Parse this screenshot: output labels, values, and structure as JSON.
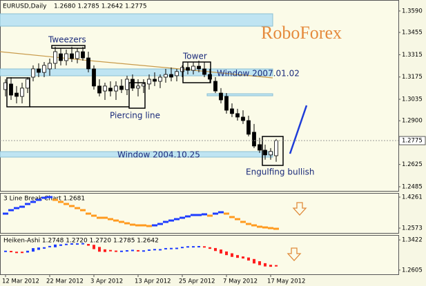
{
  "header": {
    "symbol": "EURUSD,Daily",
    "ohlc": "1.2680 1.2785 1.2642 1.2775"
  },
  "watermark": "RoboForex",
  "annotations": {
    "tweezers": "Tweezers",
    "tower": "Tower",
    "window_2007": "Window 2007.01.02",
    "piercing": "Piercing line",
    "window_2004": "Window 2004.10.25",
    "engulfing": "Engulfing bullish"
  },
  "chart_data": [
    {
      "type": "candlestick",
      "categories": [
        "12 Mar 2012",
        null,
        null,
        null,
        null,
        null,
        null,
        null,
        "22 Mar 2012",
        null,
        null,
        null,
        null,
        null,
        null,
        null,
        "3 Apr 2012",
        null,
        null,
        null,
        null,
        null,
        null,
        null,
        "13 Apr 2012",
        null,
        null,
        null,
        null,
        null,
        null,
        null,
        "25 Apr 2012",
        null,
        null,
        null,
        null,
        null,
        null,
        null,
        "7 May 2012",
        null,
        null,
        null,
        null,
        null,
        null,
        null,
        "17 May 2012",
        null
      ],
      "open": [
        1.3096,
        1.3131,
        1.3074,
        1.3053,
        1.3105,
        1.3174,
        1.3226,
        1.3204,
        1.3226,
        1.3261,
        1.3321,
        1.3278,
        1.3321,
        1.3291,
        1.3334,
        1.3295,
        1.3226,
        1.3118,
        1.3087,
        1.3105,
        1.3087,
        1.3118,
        1.3096,
        1.3161,
        1.3105,
        1.3118,
        1.3131,
        1.3161,
        1.3148,
        1.3174,
        1.3191,
        1.3183,
        1.3209,
        1.3235,
        1.3217,
        1.3243,
        1.3226,
        1.3191,
        1.3148,
        1.3074,
        1.3053,
        1.2975,
        1.2945,
        1.2923,
        1.2901,
        1.2828,
        1.275,
        1.2715,
        1.2685,
        1.268
      ],
      "high": [
        1.3161,
        1.3174,
        1.3118,
        1.3139,
        1.3174,
        1.3248,
        1.3261,
        1.3269,
        1.3291,
        1.3365,
        1.3356,
        1.3347,
        1.3365,
        1.3356,
        1.3365,
        1.3334,
        1.3248,
        1.3161,
        1.3139,
        1.3148,
        1.3148,
        1.3161,
        1.3183,
        1.3191,
        1.3161,
        1.3161,
        1.3191,
        1.3204,
        1.3191,
        1.3226,
        1.3235,
        1.3226,
        1.3248,
        1.3269,
        1.3269,
        1.3278,
        1.3269,
        1.3226,
        1.3174,
        1.3105,
        1.3074,
        1.3009,
        1.2975,
        1.2966,
        1.2932,
        1.288,
        1.2793,
        1.275,
        1.2728,
        1.2785
      ],
      "low": [
        1.3053,
        1.3031,
        1.3009,
        1.3009,
        1.3074,
        1.3148,
        1.3174,
        1.3174,
        1.3183,
        1.3226,
        1.3248,
        1.3248,
        1.3269,
        1.3261,
        1.3278,
        1.3204,
        1.3096,
        1.3053,
        1.3031,
        1.3053,
        1.3031,
        1.3074,
        1.3061,
        1.3087,
        1.3053,
        1.3074,
        1.3096,
        1.3118,
        1.3105,
        1.3139,
        1.3148,
        1.3148,
        1.3174,
        1.3191,
        1.3191,
        1.3204,
        1.3174,
        1.3139,
        1.3074,
        1.3009,
        1.2945,
        1.2923,
        1.2901,
        1.288,
        1.2802,
        1.2728,
        1.2698,
        1.2655,
        1.2655,
        1.2642
      ],
      "close": [
        1.3139,
        1.3061,
        1.3053,
        1.3105,
        1.3161,
        1.3226,
        1.3204,
        1.3248,
        1.3261,
        1.3334,
        1.3278,
        1.3321,
        1.3291,
        1.3334,
        1.3295,
        1.3226,
        1.3118,
        1.3074,
        1.3118,
        1.3087,
        1.3118,
        1.3096,
        1.3161,
        1.3105,
        1.3118,
        1.3131,
        1.3161,
        1.3148,
        1.3174,
        1.3191,
        1.3174,
        1.3209,
        1.3235,
        1.3217,
        1.3243,
        1.3226,
        1.3191,
        1.3161,
        1.3087,
        1.3031,
        1.2966,
        1.2945,
        1.2923,
        1.2901,
        1.2815,
        1.2741,
        1.2715,
        1.2685,
        1.2707,
        1.2775
      ],
      "up_color": "#ffffff",
      "down_color": "#000000",
      "ylim": [
        1.2459,
        1.3659
      ],
      "yticks": [
        {
          "value": 1.359,
          "label": "1.3590"
        },
        1.3455,
        1.3315,
        1.3175,
        1.3035,
        {
          "value": 1.29,
          "label": "1.2900"
        },
        1.2625,
        1.2485
      ],
      "current_price": 1.2775
    },
    {
      "type": "line_break",
      "title": "3 Line Break Chart 1.2681",
      "values": [
        1.3361,
        1.3549,
        1.3661,
        1.3736,
        1.3886,
        1.3999,
        1.4111,
        1.4224,
        1.4261,
        1.4111,
        1.3999,
        1.3886,
        1.3774,
        1.3661,
        1.3549,
        1.3361,
        1.3249,
        1.3136,
        1.3136,
        1.3061,
        1.2986,
        1.2911,
        1.2836,
        1.2761,
        1.2724,
        1.2724,
        1.2686,
        1.2724,
        1.2799,
        1.2911,
        1.2986,
        1.3061,
        1.3136,
        1.3211,
        1.3286,
        1.3286,
        1.3324,
        1.3249,
        1.3361,
        1.3436,
        1.3361,
        1.3174,
        1.3061,
        1.2911,
        1.2799,
        1.2724,
        1.2649,
        1.2611,
        1.2573,
        1.2536
      ],
      "up_color": "#1e3cff",
      "down_color": "#ff9a1e",
      "ylim": [
        1.2311,
        1.4486
      ],
      "yticks": [
        1.2573,
        1.4261
      ]
    },
    {
      "type": "heiken_ashi",
      "title": "Heiken-Ashi 1.2748 1.2720 1.2720 1.2785 1.2642",
      "open": [
        1.31,
        1.3106,
        1.3103,
        1.3084,
        1.308,
        1.3105,
        1.3152,
        1.3184,
        1.3204,
        1.3222,
        1.326,
        1.3281,
        1.329,
        1.3301,
        1.3306,
        1.3312,
        1.3289,
        1.3231,
        1.3167,
        1.3131,
        1.3115,
        1.3106,
        1.3109,
        1.3117,
        1.3127,
        1.3118,
        1.312,
        1.3133,
        1.3146,
        1.3151,
        1.3167,
        1.3177,
        1.3185,
        1.3201,
        1.3217,
        1.3226,
        1.3232,
        1.3224,
        1.3202,
        1.3162,
        1.3109,
        1.306,
        1.3011,
        1.2974,
        1.2946,
        1.2905,
        1.2845,
        1.2792,
        1.2748,
        1.2721
      ],
      "close": [
        1.3112,
        1.3099,
        1.3064,
        1.3076,
        1.3129,
        1.3199,
        1.3216,
        1.3224,
        1.324,
        1.3297,
        1.3301,
        1.3299,
        1.3312,
        1.3311,
        1.3318,
        1.3265,
        1.3172,
        1.3102,
        1.3094,
        1.3098,
        1.3096,
        1.3112,
        1.3125,
        1.3136,
        1.3109,
        1.3121,
        1.3145,
        1.3158,
        1.3155,
        1.3183,
        1.3187,
        1.3192,
        1.3216,
        1.3233,
        1.3235,
        1.3238,
        1.3215,
        1.3179,
        1.3121,
        1.3055,
        1.301,
        1.2962,
        1.2936,
        1.2918,
        1.2863,
        1.2784,
        1.2739,
        1.2703,
        1.2694,
        1.272
      ],
      "up_color": "#1e3cff",
      "down_color": "#ff1e1e",
      "ylim": [
        1.2491,
        1.3555
      ],
      "yticks": [
        1.2605,
        1.3422
      ]
    }
  ]
}
